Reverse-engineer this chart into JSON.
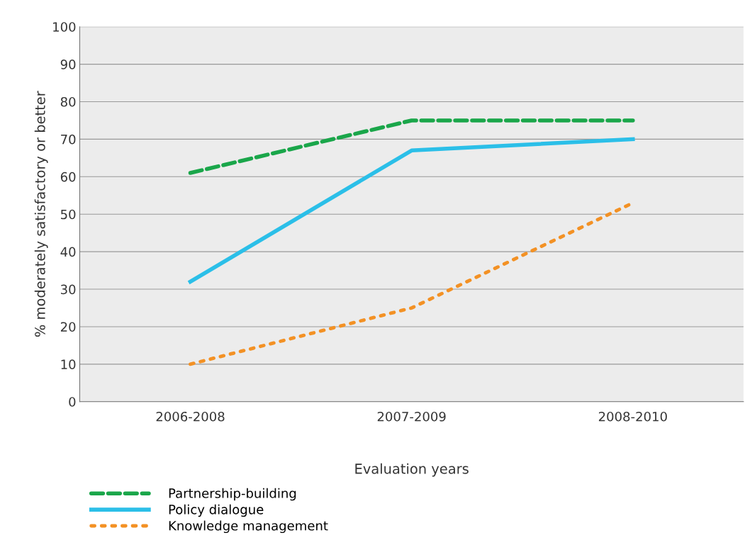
{
  "chart_data": {
    "type": "line",
    "xlabel": "Evaluation years",
    "ylabel": "% moderately satisfactory or better",
    "categories": [
      "2006-2008",
      "2007-2009",
      "2008-2010"
    ],
    "series": [
      {
        "name": "Partnership-building",
        "color": "#1aa64a",
        "values": [
          61,
          75,
          75
        ],
        "line_style": "dashed"
      },
      {
        "name": "Policy dialogue",
        "color": "#2bbfe8",
        "values": [
          32,
          67,
          70
        ],
        "line_style": "solid"
      },
      {
        "name": "Knowledge management",
        "color": "#f39124",
        "values": [
          10,
          25,
          53
        ],
        "line_style": "dotted"
      }
    ],
    "ylim": [
      0,
      100
    ],
    "yticks": [
      0,
      10,
      20,
      30,
      40,
      50,
      60,
      70,
      80,
      90,
      100
    ],
    "grid": "y",
    "legend": "bottom left",
    "marker": "none"
  }
}
